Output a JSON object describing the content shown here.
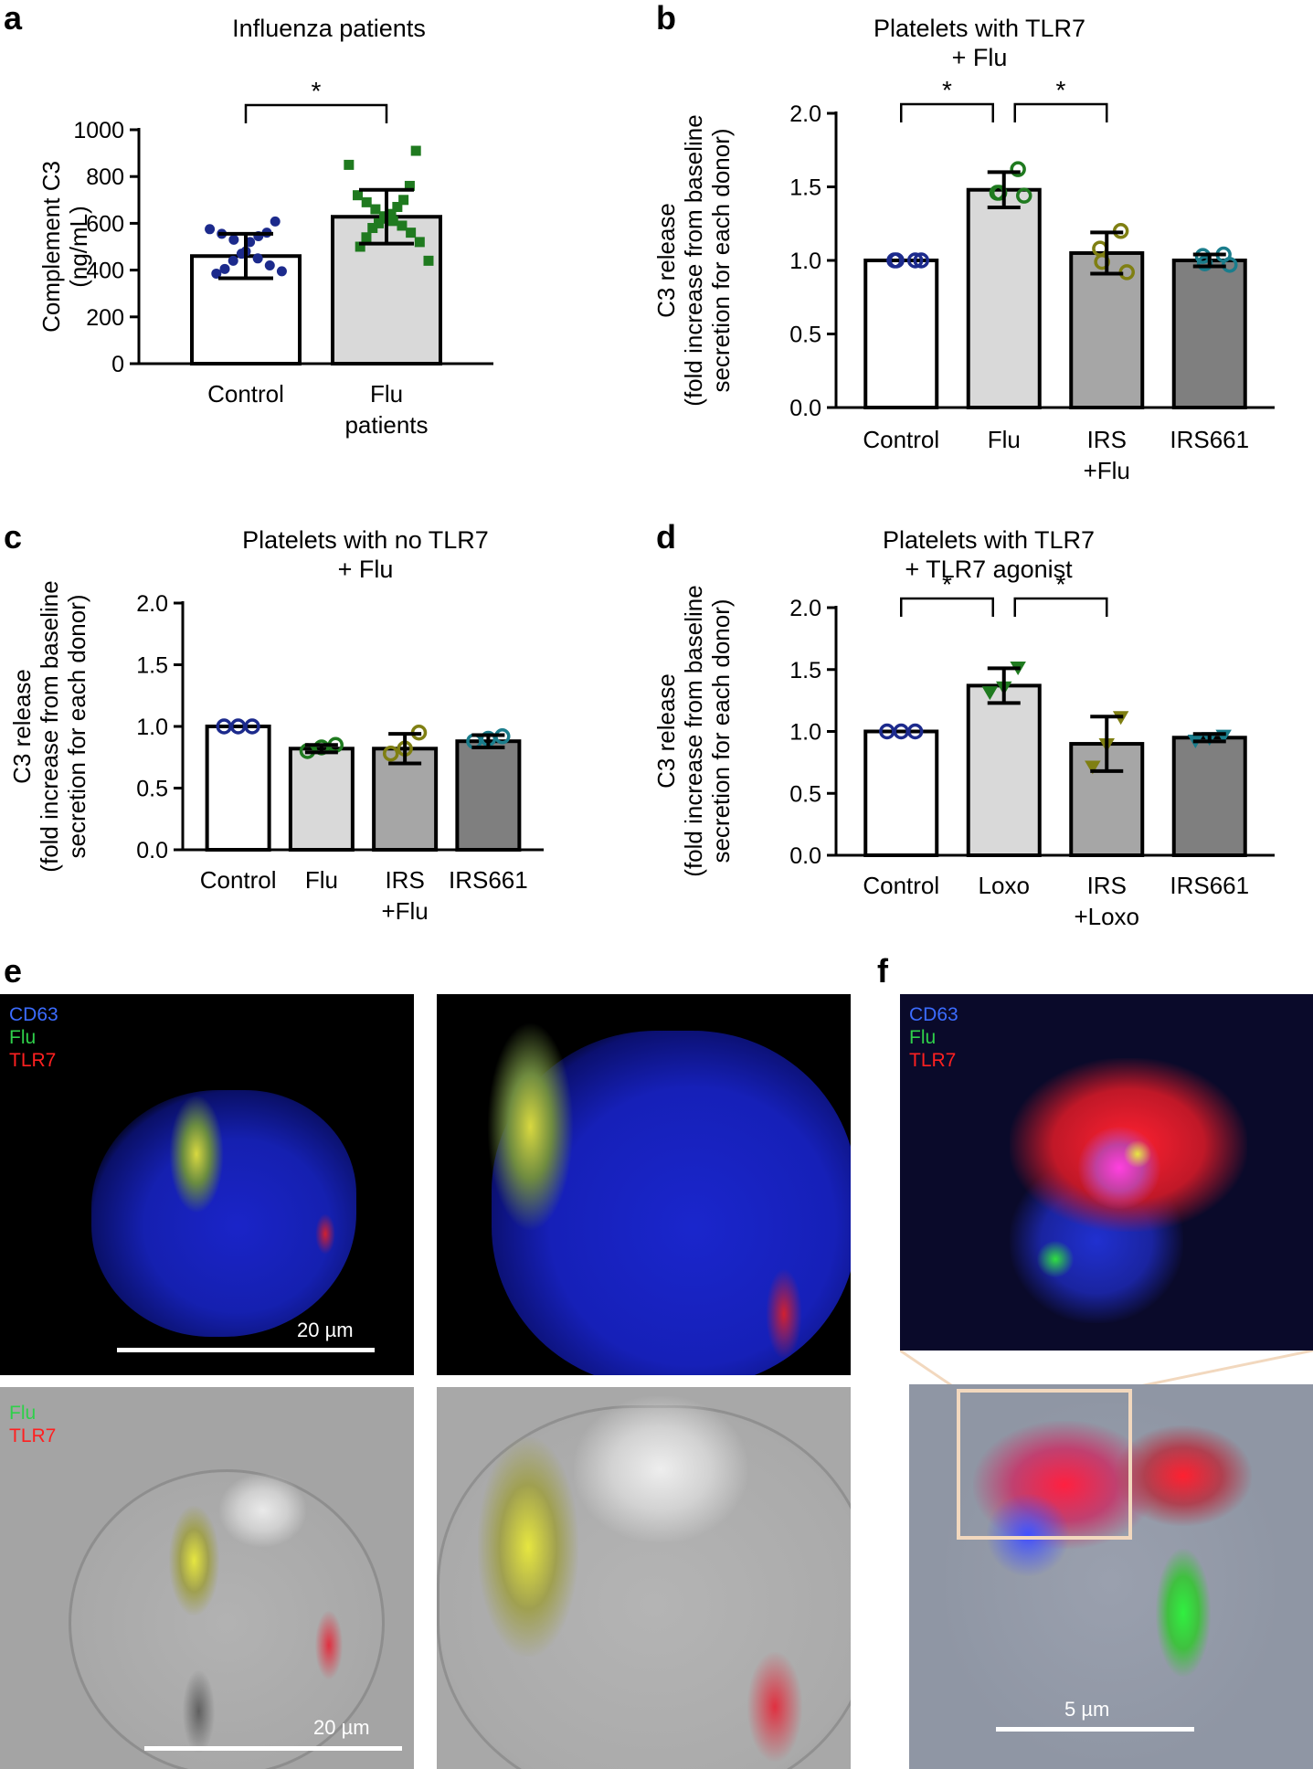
{
  "chart_data": [
    {
      "panel": "a",
      "type": "bar",
      "title": "Influenza patients",
      "ylabel": [
        "Complement C3",
        "(ng/mL)"
      ],
      "ylim": [
        0,
        1000
      ],
      "yticks": [
        "0",
        "200",
        "400",
        "600",
        "800",
        "1000"
      ],
      "categories": [
        [
          "Control"
        ],
        [
          "Flu",
          "patients"
        ]
      ],
      "means": [
        460,
        628
      ],
      "sd": [
        95,
        115
      ],
      "bar_colors": [
        "#ffffff",
        "#d9d9d9"
      ],
      "point_colors": [
        "#1c2a8c",
        "#1f7a1f"
      ],
      "point_shape": "circle-square",
      "points": [
        [
          608,
          575,
          560,
          555,
          545,
          530,
          520,
          480,
          470,
          450,
          440,
          420,
          405,
          395,
          385
        ],
        [
          910,
          850,
          760,
          720,
          700,
          690,
          670,
          660,
          640,
          630,
          620,
          610,
          600,
          590,
          580,
          560,
          540,
          520,
          500,
          440
        ]
      ],
      "significance": [
        {
          "from": 0,
          "to": 1,
          "label": "*"
        }
      ]
    },
    {
      "panel": "b",
      "type": "bar",
      "title": [
        "Platelets with TLR7",
        "+ Flu"
      ],
      "ylabel": [
        "C3 release",
        "(fold increase from baseline",
        "secretion for each donor)"
      ],
      "ylim": [
        0,
        2.0
      ],
      "yticks": [
        "0.0",
        "0.5",
        "1.0",
        "1.5",
        "2.0"
      ],
      "categories": [
        [
          "Control"
        ],
        [
          "Flu"
        ],
        [
          "IRS",
          "+Flu"
        ],
        [
          "IRS661"
        ]
      ],
      "means": [
        1.0,
        1.48,
        1.05,
        1.0
      ],
      "sd": [
        0.0,
        0.12,
        0.14,
        0.04
      ],
      "bar_colors": [
        "#ffffff",
        "#d9d9d9",
        "#a6a6a6",
        "#7f7f7f"
      ],
      "point_colors": [
        "#1c2a8c",
        "#1f7a1f",
        "#7f7f12",
        "#1a7d8c"
      ],
      "points": [
        [
          1.0,
          1.0,
          1.0,
          1.0
        ],
        [
          1.62,
          1.46,
          1.46,
          1.44
        ],
        [
          1.2,
          1.08,
          0.99,
          0.92
        ],
        [
          1.04,
          1.03,
          0.98,
          0.97
        ]
      ],
      "significance": [
        {
          "from": 0,
          "to": 1,
          "label": "*"
        },
        {
          "from": 1,
          "to": 2,
          "label": "*"
        }
      ]
    },
    {
      "panel": "c",
      "type": "bar",
      "title": [
        "Platelets with no TLR7",
        "+ Flu"
      ],
      "ylabel": [
        "C3 release",
        "(fold increase from baseline",
        "secretion for each donor)"
      ],
      "ylim": [
        0,
        2.0
      ],
      "yticks": [
        "0.0",
        "0.5",
        "1.0",
        "1.5",
        "2.0"
      ],
      "categories": [
        [
          "Control"
        ],
        [
          "Flu"
        ],
        [
          "IRS",
          "+Flu"
        ],
        [
          "IRS661"
        ]
      ],
      "means": [
        1.0,
        0.82,
        0.82,
        0.88
      ],
      "sd": [
        0.0,
        0.03,
        0.12,
        0.05
      ],
      "bar_colors": [
        "#ffffff",
        "#d9d9d9",
        "#a6a6a6",
        "#7f7f7f"
      ],
      "point_colors": [
        "#1c2a8c",
        "#1f7a1f",
        "#7f7f12",
        "#1a7d8c"
      ],
      "points": [
        [
          1.0,
          1.0,
          1.0
        ],
        [
          0.85,
          0.83,
          0.8
        ],
        [
          0.95,
          0.82,
          0.78
        ],
        [
          0.92,
          0.9,
          0.88
        ]
      ],
      "significance": []
    },
    {
      "panel": "d",
      "type": "bar",
      "title": [
        "Platelets with TLR7",
        "+ TLR7 agonist"
      ],
      "ylabel": [
        "C3 release",
        "(fold increase from baseline",
        "secretion for each donor)"
      ],
      "ylim": [
        0,
        2.0
      ],
      "yticks": [
        "0.0",
        "0.5",
        "1.0",
        "1.5",
        "2.0"
      ],
      "categories": [
        [
          "Control"
        ],
        [
          "Loxo"
        ],
        [
          "IRS",
          "+Loxo"
        ],
        [
          "IRS661"
        ]
      ],
      "means": [
        1.0,
        1.37,
        0.9,
        0.95
      ],
      "sd": [
        0.0,
        0.14,
        0.22,
        0.03
      ],
      "bar_colors": [
        "#ffffff",
        "#d9d9d9",
        "#a6a6a6",
        "#7f7f7f"
      ],
      "point_colors": [
        "#1c2a8c",
        "#1f7a1f",
        "#7f7f12",
        "#1a7d8c"
      ],
      "point_shape": "triangle",
      "points": [
        [
          1.0,
          1.0,
          1.0
        ],
        [
          1.52,
          1.36,
          1.32
        ],
        [
          1.12,
          0.9,
          0.72
        ],
        [
          0.97,
          0.95,
          0.93
        ]
      ],
      "significance": [
        {
          "from": 0,
          "to": 1,
          "label": "*"
        },
        {
          "from": 1,
          "to": 2,
          "label": "*"
        }
      ]
    }
  ],
  "panels": {
    "e_letter": "e",
    "f_letter": "f",
    "e_top_legend": [
      "CD63",
      "Flu",
      "TLR7"
    ],
    "e_bottom_legend": [
      "Flu",
      "TLR7"
    ],
    "f_legend": [
      "CD63",
      "Flu",
      "TLR7"
    ],
    "scale_e_top": "20 µm",
    "scale_e_bottom": "20 µm",
    "scale_f": "5 µm"
  },
  "colors": {
    "legend_cd63": "#3b6cff",
    "legend_flu": "#2fd04a",
    "legend_tlr7": "#ff2020"
  }
}
